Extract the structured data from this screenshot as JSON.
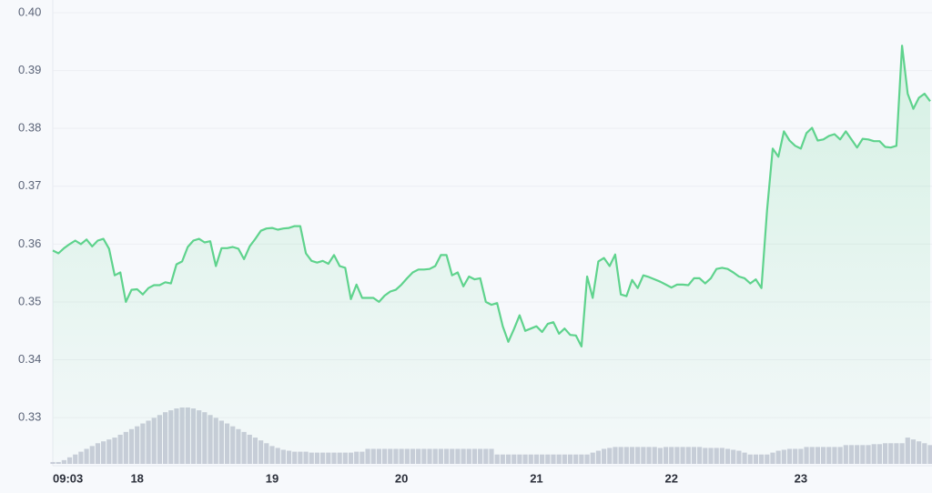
{
  "chart_data": {
    "type": "line",
    "categories": [
      "09:03",
      null,
      null,
      null,
      null,
      null,
      null,
      null,
      null,
      null,
      null,
      null,
      null,
      null,
      null,
      "18",
      null,
      null,
      null,
      null,
      null,
      null,
      null,
      null,
      null,
      null,
      null,
      null,
      null,
      null,
      null,
      null,
      null,
      null,
      null,
      null,
      null,
      null,
      null,
      "19",
      null,
      null,
      null,
      null,
      null,
      null,
      null,
      null,
      null,
      null,
      null,
      null,
      null,
      null,
      null,
      null,
      null,
      null,
      null,
      null,
      null,
      null,
      "20",
      null,
      null,
      null,
      null,
      null,
      null,
      null,
      null,
      null,
      null,
      null,
      null,
      null,
      null,
      null,
      null,
      null,
      null,
      null,
      null,
      null,
      null,
      null,
      "21",
      null,
      null,
      null,
      null,
      null,
      null,
      null,
      null,
      null,
      null,
      null,
      null,
      null,
      null,
      null,
      null,
      null,
      null,
      null,
      null,
      null,
      null,
      null,
      "22",
      null,
      null,
      null,
      null,
      null,
      null,
      null,
      null,
      null,
      null,
      null,
      null,
      null,
      null,
      null,
      null,
      null,
      null,
      null,
      null,
      null,
      null,
      "23",
      null,
      null,
      null,
      null,
      null,
      null,
      null,
      null,
      null,
      null,
      null,
      null,
      null,
      null,
      null,
      null,
      null,
      null,
      null,
      null,
      null,
      null,
      null
    ],
    "series": [
      {
        "color": "#5fd38d",
        "values": [
          0.3589,
          0.3584,
          0.3593,
          0.36,
          0.3606,
          0.36,
          0.3608,
          0.3596,
          0.3606,
          0.3609,
          0.3592,
          0.3546,
          0.3551,
          0.35,
          0.3521,
          0.3522,
          0.3513,
          0.3524,
          0.3529,
          0.3529,
          0.3534,
          0.3532,
          0.3565,
          0.357,
          0.3595,
          0.3606,
          0.3609,
          0.3603,
          0.3605,
          0.3562,
          0.3593,
          0.3593,
          0.3595,
          0.3592,
          0.3574,
          0.3596,
          0.3609,
          0.3623,
          0.3627,
          0.3628,
          0.3625,
          0.3627,
          0.3628,
          0.3631,
          0.3631,
          0.3584,
          0.3571,
          0.3568,
          0.3571,
          0.3566,
          0.3581,
          0.3562,
          0.3559,
          0.3505,
          0.353,
          0.3507,
          0.3507,
          0.3507,
          0.35,
          0.3511,
          0.3518,
          0.3521,
          0.353,
          0.3541,
          0.3551,
          0.3556,
          0.3556,
          0.3557,
          0.3562,
          0.3581,
          0.3581,
          0.3546,
          0.3551,
          0.3527,
          0.3544,
          0.3539,
          0.3541,
          0.35,
          0.3495,
          0.3498,
          0.3458,
          0.3431,
          0.3453,
          0.3477,
          0.345,
          0.3454,
          0.3458,
          0.3448,
          0.3462,
          0.3465,
          0.3445,
          0.3454,
          0.3443,
          0.3442,
          0.3423,
          0.3544,
          0.3507,
          0.357,
          0.3576,
          0.3562,
          0.3582,
          0.3513,
          0.351,
          0.3538,
          0.3524,
          0.3546,
          0.3543,
          0.3539,
          0.3535,
          0.353,
          0.3525,
          0.353,
          0.353,
          0.3529,
          0.3541,
          0.3541,
          0.3532,
          0.3541,
          0.3557,
          0.3559,
          0.3557,
          0.3551,
          0.3544,
          0.3541,
          0.3532,
          0.3539,
          0.3524,
          0.3659,
          0.3765,
          0.3751,
          0.3795,
          0.3779,
          0.377,
          0.3765,
          0.3792,
          0.3801,
          0.3779,
          0.3781,
          0.3787,
          0.379,
          0.3781,
          0.3795,
          0.3781,
          0.3767,
          0.3782,
          0.3781,
          0.3778,
          0.3778,
          0.3768,
          0.3767,
          0.377,
          0.3943,
          0.386,
          0.3834,
          0.3853,
          0.386,
          0.3847
        ]
      }
    ],
    "volume": {
      "color": "#c9cdd9",
      "values": [
        2,
        2,
        4,
        7,
        10,
        13,
        16,
        19,
        22,
        24,
        26,
        28,
        31,
        34,
        37,
        40,
        43,
        46,
        49,
        52,
        55,
        57,
        59,
        60,
        60,
        59,
        57,
        55,
        52,
        49,
        46,
        43,
        40,
        37,
        34,
        31,
        28,
        25,
        22,
        19,
        17,
        15,
        14,
        13,
        13,
        13,
        12,
        12,
        12,
        12,
        12,
        12,
        12,
        12,
        13,
        13,
        16,
        16,
        16,
        16,
        16,
        16,
        16,
        16,
        16,
        16,
        16,
        16,
        16,
        16,
        16,
        16,
        16,
        16,
        16,
        16,
        16,
        16,
        16,
        10,
        10,
        10,
        10,
        10,
        10,
        10,
        10,
        10,
        10,
        10,
        10,
        10,
        10,
        10,
        10,
        10,
        12,
        14,
        16,
        17,
        18,
        18,
        18,
        18,
        18,
        18,
        18,
        18,
        17,
        18,
        18,
        18,
        18,
        18,
        18,
        18,
        17,
        17,
        17,
        17,
        16,
        15,
        14,
        12,
        10,
        10,
        10,
        10,
        12,
        14,
        15,
        16,
        16,
        16,
        18,
        18,
        18,
        18,
        18,
        18,
        18,
        20,
        20,
        20,
        20,
        20,
        21,
        21,
        22,
        22,
        22,
        22,
        28,
        26,
        24,
        22,
        20
      ]
    },
    "ylim": [
      0.322,
      0.4
    ],
    "yticks": [
      0.33,
      0.34,
      0.35,
      0.36,
      0.37,
      0.38,
      0.39,
      {
        "value": 0.4,
        "label": "0.40"
      }
    ],
    "grid": true
  }
}
